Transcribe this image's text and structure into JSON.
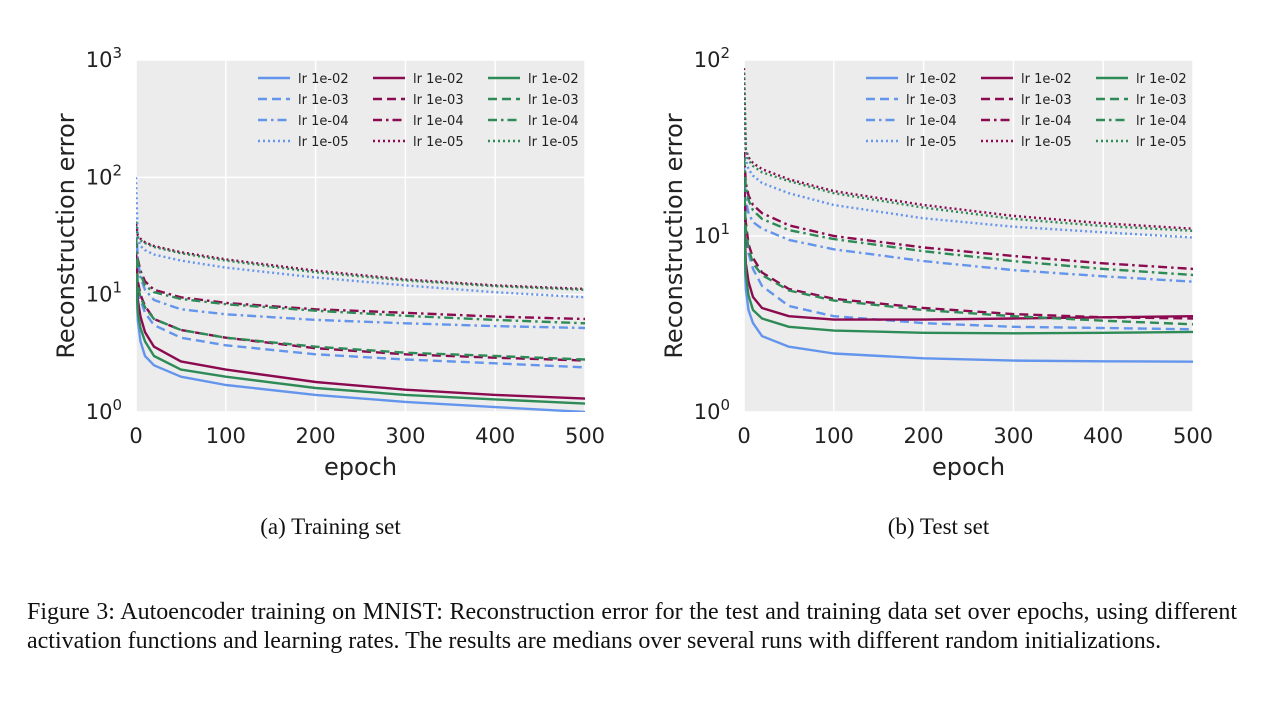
{
  "figure": {
    "caption": "Figure 3: Autoencoder training on MNIST: Reconstruction error for the test and training data set over epochs, using different activation functions and learning rates. The results are medians over several runs with different random initializations."
  },
  "colors": {
    "blue": "#6495ed",
    "maroon": "#8b0a50",
    "green": "#2e8b57",
    "plot_background": "#ececec",
    "grid": "#ffffff"
  },
  "chart_data": [
    {
      "type": "line",
      "subcaption": "(a) Training set",
      "xlabel": "epoch",
      "ylabel": "Reconstruction error",
      "xlim": [
        0,
        500
      ],
      "ylim": [
        1,
        1000
      ],
      "yscale": "log",
      "grid": true,
      "legend_position": "top-right",
      "x_ticks": [
        "0",
        "100",
        "200",
        "300",
        "400",
        "500"
      ],
      "y_ticks": [
        {
          "base": "10",
          "exp": "0"
        },
        {
          "base": "10",
          "exp": "1"
        },
        {
          "base": "10",
          "exp": "2"
        },
        {
          "base": "10",
          "exp": "3"
        }
      ],
      "x": [
        0,
        2,
        5,
        10,
        20,
        50,
        100,
        200,
        300,
        400,
        500
      ],
      "series": [
        {
          "name": "lr 1e-02",
          "color": "#6495ed",
          "dash": "solid",
          "values": [
            18,
            6,
            4,
            3,
            2.5,
            2.0,
            1.7,
            1.4,
            1.22,
            1.1,
            1.0
          ]
        },
        {
          "name": "lr 1e-03",
          "color": "#6495ed",
          "dash": "dashed",
          "values": [
            25,
            12,
            9,
            7,
            5.5,
            4.3,
            3.7,
            3.1,
            2.8,
            2.6,
            2.4
          ]
        },
        {
          "name": "lr 1e-04",
          "color": "#6495ed",
          "dash": "dashdot",
          "values": [
            40,
            20,
            14,
            11,
            9,
            7.5,
            6.8,
            6.1,
            5.7,
            5.4,
            5.2
          ]
        },
        {
          "name": "lr 1e-05",
          "color": "#6495ed",
          "dash": "dotted",
          "values": [
            100,
            30,
            26,
            24,
            22,
            19.5,
            17,
            14,
            12,
            10.5,
            9.5
          ]
        },
        {
          "name": "lr 1e-02",
          "color": "#8b0a50",
          "dash": "solid",
          "values": [
            18,
            9,
            6.5,
            4.8,
            3.6,
            2.7,
            2.3,
            1.8,
            1.55,
            1.4,
            1.3
          ]
        },
        {
          "name": "lr 1e-03",
          "color": "#8b0a50",
          "dash": "dashed",
          "values": [
            22,
            13,
            10,
            8,
            6.2,
            5.0,
            4.3,
            3.5,
            3.1,
            2.9,
            2.75
          ]
        },
        {
          "name": "lr 1e-04",
          "color": "#8b0a50",
          "dash": "dashdot",
          "values": [
            30,
            20,
            16,
            13,
            11,
            9.5,
            8.5,
            7.5,
            7.0,
            6.5,
            6.2
          ]
        },
        {
          "name": "lr 1e-05",
          "color": "#8b0a50",
          "dash": "dotted",
          "values": [
            40,
            32,
            30,
            28,
            26,
            23,
            20,
            16,
            13.5,
            12,
            11.2
          ]
        },
        {
          "name": "lr 1e-02",
          "color": "#2e8b57",
          "dash": "solid",
          "values": [
            15,
            7,
            5.2,
            4,
            3,
            2.3,
            2.0,
            1.6,
            1.4,
            1.28,
            1.18
          ]
        },
        {
          "name": "lr 1e-03",
          "color": "#2e8b57",
          "dash": "dashed",
          "values": [
            20,
            12,
            9.5,
            7.8,
            6.2,
            5.0,
            4.3,
            3.6,
            3.2,
            3.0,
            2.8
          ]
        },
        {
          "name": "lr 1e-04",
          "color": "#2e8b57",
          "dash": "dashdot",
          "values": [
            30,
            19,
            15,
            12,
            10.5,
            9.2,
            8.3,
            7.3,
            6.6,
            6.1,
            5.7
          ]
        },
        {
          "name": "lr 1e-05",
          "color": "#2e8b57",
          "dash": "dotted",
          "values": [
            42,
            31,
            29,
            27.5,
            25.5,
            22.5,
            19.5,
            15.5,
            13.2,
            11.8,
            11
          ]
        }
      ]
    },
    {
      "type": "line",
      "subcaption": "(b) Test set",
      "xlabel": "epoch",
      "ylabel": "Reconstruction error",
      "xlim": [
        0,
        500
      ],
      "ylim": [
        1,
        100
      ],
      "yscale": "log",
      "grid": true,
      "legend_position": "top-right",
      "x_ticks": [
        "0",
        "100",
        "200",
        "300",
        "400",
        "500"
      ],
      "y_ticks": [
        {
          "base": "10",
          "exp": "0"
        },
        {
          "base": "10",
          "exp": "1"
        },
        {
          "base": "10",
          "exp": "2"
        }
      ],
      "x": [
        0,
        2,
        5,
        10,
        20,
        50,
        100,
        200,
        300,
        400,
        500
      ],
      "series": [
        {
          "name": "lr 1e-02",
          "color": "#6495ed",
          "dash": "solid",
          "values": [
            10,
            5,
            3.8,
            3.2,
            2.7,
            2.35,
            2.15,
            2.02,
            1.96,
            1.94,
            1.93
          ]
        },
        {
          "name": "lr 1e-03",
          "color": "#6495ed",
          "dash": "dashed",
          "values": [
            20,
            10,
            8,
            6.5,
            5.2,
            4.0,
            3.5,
            3.2,
            3.05,
            3.0,
            2.95
          ]
        },
        {
          "name": "lr 1e-04",
          "color": "#6495ed",
          "dash": "dashdot",
          "values": [
            25,
            16,
            13.5,
            12,
            11,
            9.5,
            8.4,
            7.2,
            6.4,
            5.9,
            5.5
          ]
        },
        {
          "name": "lr 1e-05",
          "color": "#6495ed",
          "dash": "dotted",
          "values": [
            80,
            27,
            24,
            22,
            20,
            17.5,
            15,
            12.6,
            11.3,
            10.5,
            9.8
          ]
        },
        {
          "name": "lr 1e-02",
          "color": "#8b0a50",
          "dash": "solid",
          "values": [
            15,
            7,
            5.5,
            4.5,
            3.9,
            3.5,
            3.35,
            3.35,
            3.4,
            3.45,
            3.5
          ]
        },
        {
          "name": "lr 1e-03",
          "color": "#8b0a50",
          "dash": "dashed",
          "values": [
            22,
            12,
            9,
            7.5,
            6.2,
            5.0,
            4.4,
            3.9,
            3.6,
            3.45,
            3.4
          ]
        },
        {
          "name": "lr 1e-04",
          "color": "#8b0a50",
          "dash": "dashdot",
          "values": [
            30,
            20,
            17,
            15,
            13.5,
            11.5,
            10,
            8.6,
            7.7,
            7.0,
            6.5
          ]
        },
        {
          "name": "lr 1e-05",
          "color": "#8b0a50",
          "dash": "dotted",
          "values": [
            90,
            31,
            28,
            26,
            24,
            21,
            18,
            15,
            13,
            11.8,
            11
          ]
        },
        {
          "name": "lr 1e-02",
          "color": "#2e8b57",
          "dash": "solid",
          "values": [
            12,
            6,
            4.6,
            3.8,
            3.4,
            3.05,
            2.9,
            2.82,
            2.8,
            2.82,
            2.85
          ]
        },
        {
          "name": "lr 1e-03",
          "color": "#2e8b57",
          "dash": "dashed",
          "values": [
            20,
            11,
            8.5,
            7.0,
            6.0,
            4.9,
            4.3,
            3.8,
            3.5,
            3.3,
            3.15
          ]
        },
        {
          "name": "lr 1e-04",
          "color": "#2e8b57",
          "dash": "dashdot",
          "values": [
            28,
            19,
            16,
            14,
            12.5,
            10.8,
            9.6,
            8.2,
            7.2,
            6.5,
            6.0
          ]
        },
        {
          "name": "lr 1e-05",
          "color": "#2e8b57",
          "dash": "dotted",
          "values": [
            85,
            30,
            27,
            25,
            23,
            20.5,
            17.5,
            14.5,
            12.5,
            11.4,
            10.7
          ]
        }
      ]
    }
  ]
}
